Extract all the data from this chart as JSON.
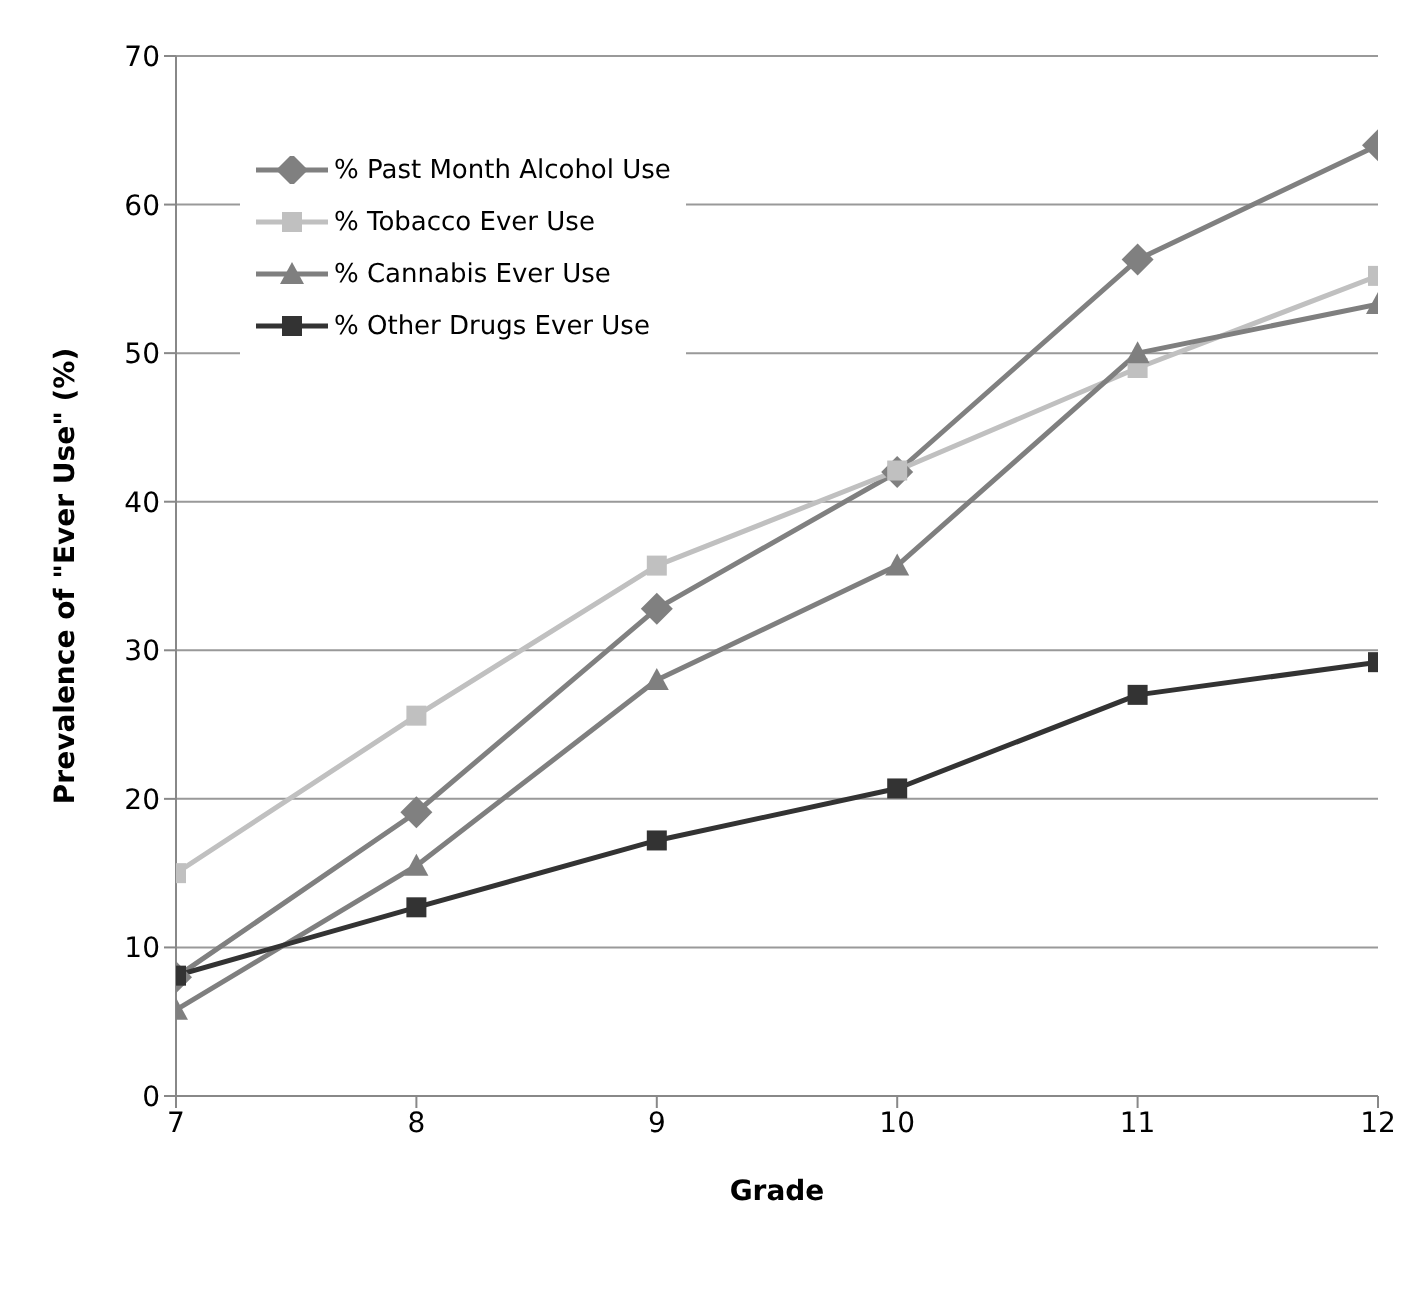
{
  "chart_data": {
    "type": "line",
    "xlabel": "Grade",
    "ylabel": "Prevalence of \"Ever Use\" (%)",
    "x": [
      7,
      8,
      9,
      10,
      11,
      12
    ],
    "xlim": [
      7,
      12
    ],
    "xticks": [
      7,
      8,
      9,
      10,
      11,
      12
    ],
    "ylim": [
      0,
      70
    ],
    "yticks": [
      0,
      10,
      20,
      30,
      40,
      50,
      60,
      70
    ],
    "grid": "y",
    "legend": "top left",
    "series": [
      {
        "name": "% Past Month Alcohol Use",
        "color": "#808080",
        "marker": "diamond",
        "values": [
          8,
          19.1,
          32.8,
          42,
          56.3,
          64
        ]
      },
      {
        "name": "% Tobacco Ever Use",
        "color": "#c0c0c0",
        "marker": "square",
        "values": [
          15,
          25.6,
          35.7,
          42.1,
          49,
          55.2
        ]
      },
      {
        "name": "% Cannabis Ever Use",
        "color": "#7f7f7f",
        "marker": "triangle",
        "values": [
          5.8,
          15.5,
          28,
          35.7,
          50,
          53.3
        ]
      },
      {
        "name": "% Other Drugs Ever Use",
        "color": "#333333",
        "marker": "square",
        "values": [
          8.1,
          12.7,
          17.2,
          20.7,
          27,
          29.2
        ]
      }
    ]
  }
}
